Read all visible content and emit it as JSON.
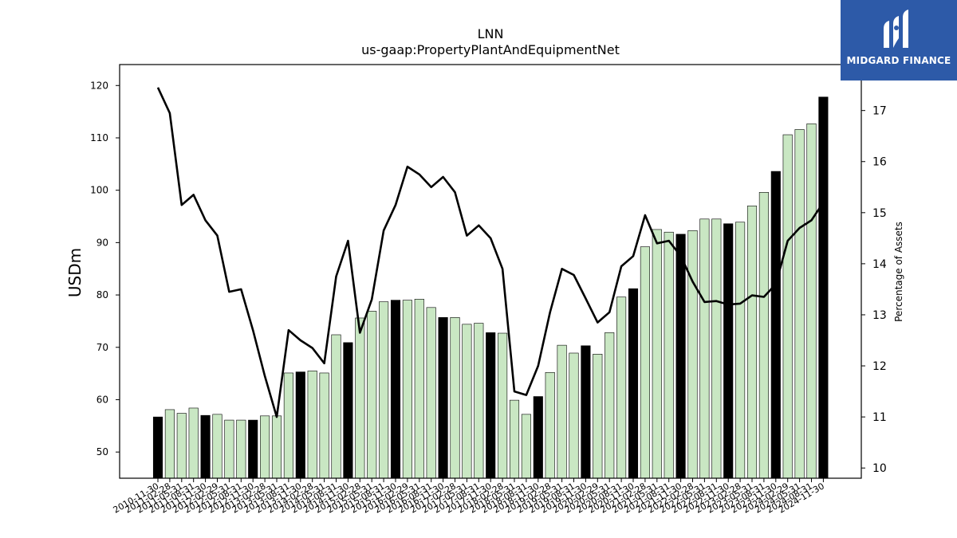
{
  "brand": {
    "name": "MIDGARD FINANCE",
    "logo_icon": "midgard-m-logo-icon",
    "bg_color": "#2d5aa8"
  },
  "chart_data": {
    "type": "bar",
    "title": "LNN",
    "subtitle": "us-gaap:PropertyPlantAndEquipmentNet",
    "ylabel": "USDm",
    "y2label": "Percentage of Assets",
    "ylim": [
      45,
      124
    ],
    "y2lim": [
      9.8,
      17.9
    ],
    "yticks": [
      50,
      60,
      70,
      80,
      90,
      100,
      110,
      120
    ],
    "y2ticks": [
      10,
      11,
      12,
      13,
      14,
      15,
      16,
      17
    ],
    "colors": {
      "bar_q4": "#000000",
      "bar_other": "#c9e7c3",
      "bar_edge": "#000000",
      "line": "#000000"
    },
    "categories": [
      "2010-11-30",
      "2011-02-28",
      "2011-05-31",
      "2011-08-31",
      "2011-11-30",
      "2012-02-29",
      "2012-05-31",
      "2012-08-31",
      "2012-11-30",
      "2013-02-28",
      "2013-05-31",
      "2013-08-31",
      "2013-11-30",
      "2014-02-28",
      "2014-05-31",
      "2014-08-31",
      "2014-11-30",
      "2015-02-28",
      "2015-05-31",
      "2015-08-31",
      "2015-11-30",
      "2016-02-29",
      "2016-05-31",
      "2016-08-31",
      "2016-11-30",
      "2017-02-28",
      "2017-05-31",
      "2017-08-31",
      "2017-11-30",
      "2018-02-28",
      "2018-05-31",
      "2018-08-31",
      "2018-11-30",
      "2019-02-28",
      "2019-05-31",
      "2019-08-31",
      "2019-11-30",
      "2020-02-29",
      "2020-05-31",
      "2020-08-31",
      "2020-11-30",
      "2021-02-28",
      "2021-05-31",
      "2021-08-31",
      "2021-11-30",
      "2022-02-28",
      "2022-05-31",
      "2022-08-31",
      "2022-11-30",
      "2023-02-28",
      "2023-05-31",
      "2023-08-31",
      "2023-11-30",
      "2024-02-29",
      "2024-05-31",
      "2024-08-31",
      "2024-11-30"
    ],
    "series": [
      {
        "name": "PropertyPlantAndEquipmentNet",
        "axis": "left",
        "type": "bar",
        "values": [
          56.7,
          58.1,
          57.4,
          58.4,
          57.0,
          57.2,
          56.1,
          56.1,
          56.1,
          56.9,
          56.9,
          65.1,
          65.3,
          65.5,
          65.1,
          72.4,
          70.9,
          75.6,
          76.9,
          78.7,
          79.0,
          79.0,
          79.2,
          77.6,
          75.7,
          75.7,
          74.4,
          74.6,
          72.8,
          72.7,
          59.9,
          57.2,
          60.6,
          65.2,
          70.4,
          68.9,
          70.3,
          68.7,
          72.8,
          79.6,
          81.2,
          89.2,
          92.5,
          92.0,
          91.6,
          92.3,
          94.5,
          94.5,
          93.6,
          93.9,
          97.0,
          99.6,
          103.6,
          110.6,
          111.6,
          112.7,
          117.8
        ]
      },
      {
        "name": "Percentage of Assets",
        "axis": "right",
        "type": "line",
        "values": [
          17.45,
          16.95,
          15.15,
          15.35,
          14.85,
          14.55,
          13.45,
          13.5,
          12.7,
          11.8,
          11.0,
          12.7,
          12.5,
          12.35,
          12.05,
          13.75,
          14.45,
          12.65,
          13.3,
          14.65,
          15.15,
          15.9,
          15.75,
          15.5,
          15.7,
          15.4,
          14.55,
          14.75,
          14.5,
          13.9,
          11.5,
          11.43,
          12.0,
          13.05,
          13.9,
          13.78,
          13.32,
          12.85,
          13.05,
          13.95,
          14.15,
          14.95,
          14.4,
          14.45,
          14.15,
          13.65,
          13.25,
          13.27,
          13.2,
          13.22,
          13.38,
          13.35,
          13.6,
          14.45,
          14.7,
          14.85,
          15.2
        ]
      }
    ],
    "q4_rule": "bars whose date falls in November are filled black"
  }
}
